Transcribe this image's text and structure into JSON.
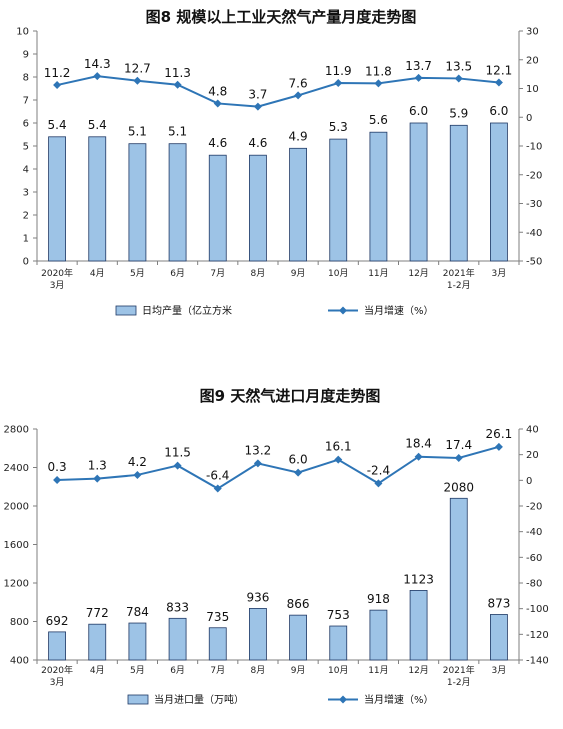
{
  "colors": {
    "bar_fill": "#9DC3E6",
    "bar_stroke": "#1F3864",
    "line": "#2E75B6"
  },
  "chart_data": [
    {
      "type": "bar",
      "title": "图8 规模以上工业天然气产量月度走势图",
      "categories": [
        [
          "2020年",
          "3月"
        ],
        [
          "4月"
        ],
        [
          "5月"
        ],
        [
          "6月"
        ],
        [
          "7月"
        ],
        [
          "8月"
        ],
        [
          "9月"
        ],
        [
          "10月"
        ],
        [
          "11月"
        ],
        [
          "12月"
        ],
        [
          "2021年",
          "1-2月"
        ],
        [
          "3月"
        ]
      ],
      "series": [
        {
          "name": "日均产量（亿立方米",
          "type": "bar",
          "axis": "left",
          "values": [
            5.4,
            5.4,
            5.1,
            5.1,
            4.6,
            4.6,
            4.9,
            5.3,
            5.6,
            6.0,
            5.9,
            6.0
          ],
          "labels": [
            "5.4",
            "5.4",
            "5.1",
            "5.1",
            "4.6",
            "4.6",
            "4.9",
            "5.3",
            "5.6",
            "6.0",
            "5.9",
            "6.0"
          ]
        },
        {
          "name": "当月增速（%）",
          "type": "line",
          "axis": "right",
          "values": [
            11.2,
            14.3,
            12.7,
            11.3,
            4.8,
            3.7,
            7.6,
            11.9,
            11.8,
            13.7,
            13.5,
            12.1
          ],
          "labels": [
            "11.2",
            "14.3",
            "12.7",
            "11.3",
            "4.8",
            "3.7",
            "7.6",
            "11.9",
            "11.8",
            "13.7",
            "13.5",
            "12.1"
          ]
        }
      ],
      "left_axis": {
        "min": 0,
        "max": 10,
        "ticks": [
          "0",
          "1",
          "2",
          "3",
          "4",
          "5",
          "6",
          "7",
          "8",
          "9",
          "10"
        ]
      },
      "right_axis": {
        "min": -50,
        "max": 30,
        "ticks": [
          "-50",
          "-40",
          "-30",
          "-20",
          "-10",
          "0",
          "10",
          "20",
          "30"
        ]
      },
      "grid": false,
      "legend": "bottom"
    },
    {
      "type": "bar",
      "title": "图9 天然气进口月度走势图",
      "categories": [
        [
          "2020年",
          "3月"
        ],
        [
          "4月"
        ],
        [
          "5月"
        ],
        [
          "6月"
        ],
        [
          "7月"
        ],
        [
          "8月"
        ],
        [
          "9月"
        ],
        [
          "10月"
        ],
        [
          "11月"
        ],
        [
          "12月"
        ],
        [
          "2021年",
          "1-2月"
        ],
        [
          "3月"
        ]
      ],
      "series": [
        {
          "name": "当月进口量（万吨）",
          "type": "bar",
          "axis": "left",
          "values": [
            692,
            772,
            784,
            833,
            735,
            936,
            866,
            753,
            918,
            1123,
            2080,
            873
          ],
          "labels": [
            "692",
            "772",
            "784",
            "833",
            "735",
            "936",
            "866",
            "753",
            "918",
            "1123",
            "2080",
            "873"
          ]
        },
        {
          "name": "当月增速（%）",
          "type": "line",
          "axis": "right",
          "values": [
            0.3,
            1.3,
            4.2,
            11.5,
            -6.4,
            13.2,
            6.0,
            16.1,
            -2.4,
            18.4,
            17.4,
            26.1
          ],
          "labels": [
            "0.3",
            "1.3",
            "4.2",
            "11.5",
            "-6.4",
            "13.2",
            "6.0",
            "16.1",
            "-2.4",
            "18.4",
            "17.4",
            "26.1"
          ]
        }
      ],
      "left_axis": {
        "min": 400,
        "max": 2800,
        "ticks": [
          "400",
          "800",
          "1200",
          "1600",
          "2000",
          "2400",
          "2800"
        ]
      },
      "right_axis": {
        "min": -140,
        "max": 40,
        "ticks": [
          "-140",
          "-120",
          "-100",
          "-80",
          "-60",
          "-40",
          "-20",
          "0",
          "20",
          "40"
        ]
      },
      "grid": false,
      "legend": "bottom"
    }
  ]
}
